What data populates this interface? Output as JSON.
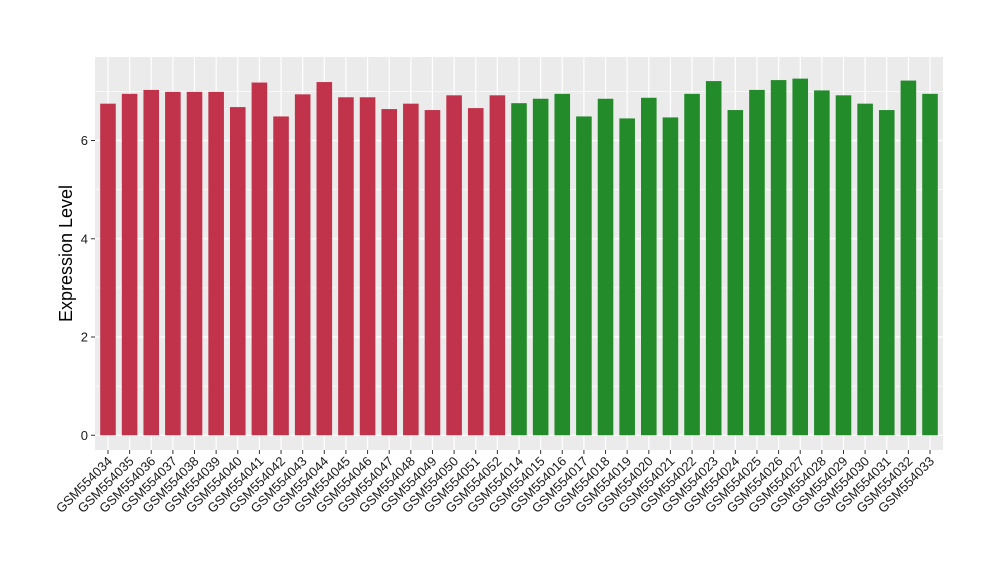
{
  "chart_data": {
    "type": "bar",
    "title": "",
    "xlabel": "",
    "ylabel": "Expression Level",
    "ylim": [
      -0.3,
      7.7
    ],
    "yticks": [
      0,
      2,
      4,
      6
    ],
    "grid": true,
    "legend": "none",
    "categories": [
      "GSM554034",
      "GSM554035",
      "GSM554036",
      "GSM554037",
      "GSM554038",
      "GSM554039",
      "GSM554040",
      "GSM554041",
      "GSM554042",
      "GSM554043",
      "GSM554044",
      "GSM554045",
      "GSM554046",
      "GSM554047",
      "GSM554048",
      "GSM554049",
      "GSM554050",
      "GSM554051",
      "GSM554052",
      "GSM554014",
      "GSM554015",
      "GSM554016",
      "GSM554017",
      "GSM554018",
      "GSM554019",
      "GSM554020",
      "GSM554021",
      "GSM554022",
      "GSM554023",
      "GSM554024",
      "GSM554025",
      "GSM554026",
      "GSM554027",
      "GSM554028",
      "GSM554029",
      "GSM554030",
      "GSM554031",
      "GSM554032",
      "GSM554033"
    ],
    "values": [
      6.75,
      6.95,
      7.03,
      6.99,
      6.99,
      6.99,
      6.68,
      7.18,
      6.49,
      6.94,
      7.19,
      6.88,
      6.88,
      6.64,
      6.75,
      6.62,
      6.92,
      6.66,
      6.92,
      6.76,
      6.85,
      6.95,
      6.49,
      6.85,
      6.45,
      6.87,
      6.47,
      6.95,
      7.21,
      6.62,
      7.03,
      7.23,
      7.26,
      7.02,
      6.92,
      6.75,
      6.62,
      7.22,
      6.95
    ],
    "groups": [
      {
        "count": 19,
        "color": "#c0334a"
      },
      {
        "count": 20,
        "color": "#238b2a"
      }
    ]
  },
  "colors": {
    "panel_background": "#ebebeb",
    "gridline": "#ffffff",
    "axis_text": "#1a1a1a"
  }
}
